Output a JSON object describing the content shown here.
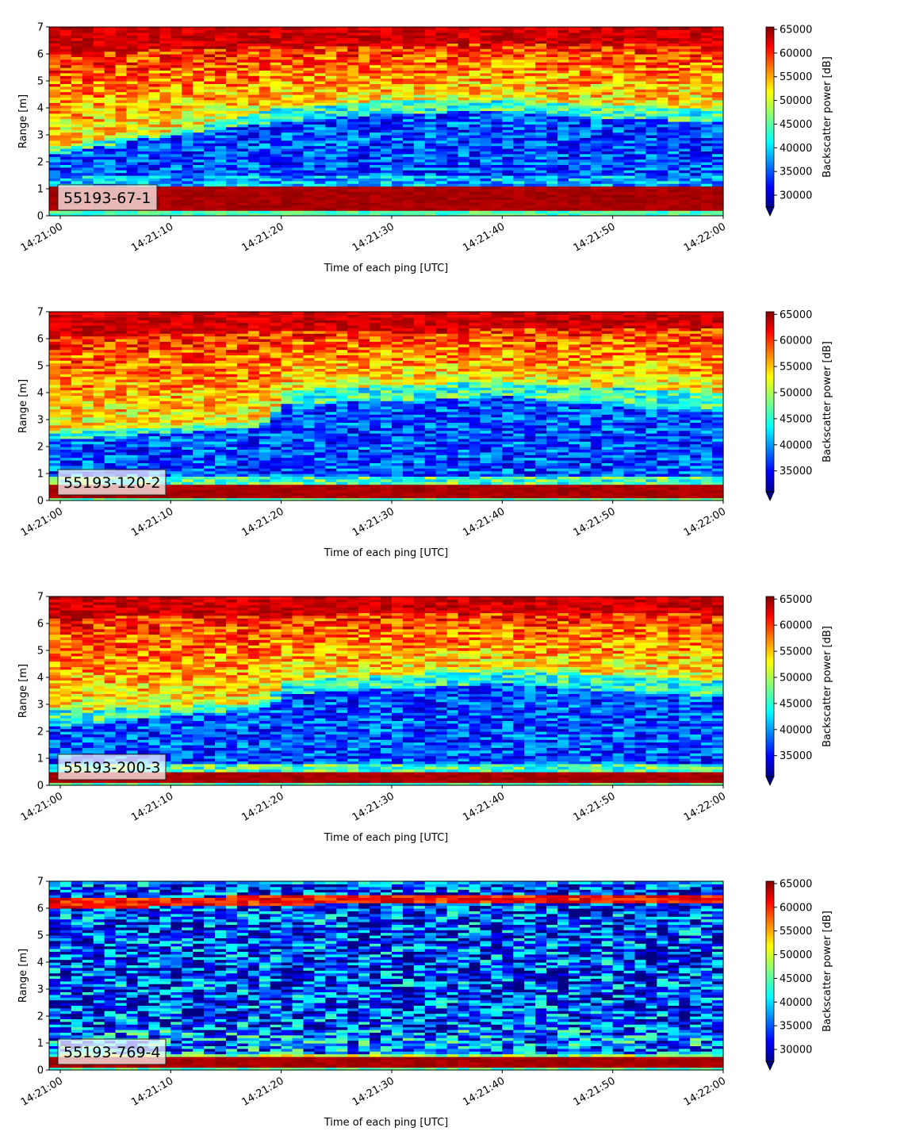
{
  "chart_data": [
    {
      "type": "heatmap",
      "label": "55193-67-1",
      "xlabel": "Time of each ping [UTC]",
      "ylabel": "Range [m]",
      "xticks": [
        "14:21:00",
        "14:21:10",
        "14:21:20",
        "14:21:30",
        "14:21:40",
        "14:21:50",
        "14:22:00"
      ],
      "x_range": [
        "14:20:59",
        "14:22:00"
      ],
      "ylim": [
        0,
        7
      ],
      "yticks": [
        0,
        1,
        2,
        3,
        4,
        5,
        6,
        7
      ],
      "colorbar": {
        "label": "Backscatter power [dB]",
        "ticks": [
          30000,
          35000,
          40000,
          45000,
          50000,
          55000,
          60000,
          65000
        ],
        "range": [
          27500,
          65500
        ],
        "extend": "min",
        "colormap": "jet"
      },
      "profile": [
        {
          "x": "14:21:00",
          "bottom_band": [
            0.2,
            1.15
          ],
          "low_upper": 2.3,
          "mid_upper": 2.6,
          "top_band_start": 6.0
        },
        {
          "x": "14:21:08",
          "bottom_band": [
            0.2,
            1.15
          ],
          "low_upper": 2.9,
          "mid_upper": 3.0,
          "top_band_start": 6.2
        },
        {
          "x": "14:21:20",
          "bottom_band": [
            0.2,
            1.15
          ],
          "low_upper": 3.5,
          "mid_upper": 4.0,
          "top_band_start": 6.3
        },
        {
          "x": "14:21:30",
          "bottom_band": [
            0.2,
            1.15
          ],
          "low_upper": 3.8,
          "mid_upper": 4.3,
          "top_band_start": 6.3
        },
        {
          "x": "14:21:40",
          "bottom_band": [
            0.2,
            1.15
          ],
          "low_upper": 3.9,
          "mid_upper": 4.3,
          "top_band_start": 6.4
        },
        {
          "x": "14:21:50",
          "bottom_band": [
            0.2,
            1.15
          ],
          "low_upper": 3.6,
          "mid_upper": 4.1,
          "top_band_start": 6.4
        },
        {
          "x": "14:22:00",
          "bottom_band": [
            0.2,
            1.15
          ],
          "low_upper": 3.5,
          "mid_upper": 4.0,
          "top_band_start": 6.4
        }
      ]
    },
    {
      "type": "heatmap",
      "label": "55193-120-2",
      "xlabel": "Time of each ping [UTC]",
      "ylabel": "Range [m]",
      "xticks": [
        "14:21:00",
        "14:21:10",
        "14:21:20",
        "14:21:30",
        "14:21:40",
        "14:21:50",
        "14:22:00"
      ],
      "x_range": [
        "14:20:59",
        "14:22:00"
      ],
      "ylim": [
        0,
        7
      ],
      "yticks": [
        0,
        1,
        2,
        3,
        4,
        5,
        6,
        7
      ],
      "colorbar": {
        "label": "Backscatter power [dB]",
        "ticks": [
          35000,
          40000,
          45000,
          50000,
          55000,
          60000,
          65000
        ],
        "range": [
          31000,
          65500
        ],
        "extend": "min",
        "colormap": "jet"
      },
      "profile": [
        {
          "x": "14:21:00",
          "bottom_band": [
            0.1,
            0.6
          ],
          "low_upper": 2.3,
          "mid_upper": 2.6,
          "top_band_start": 6.1
        },
        {
          "x": "14:21:10",
          "bottom_band": [
            0.1,
            0.6
          ],
          "low_upper": 2.5,
          "mid_upper": 2.7,
          "top_band_start": 6.2
        },
        {
          "x": "14:21:19",
          "bottom_band": [
            0.1,
            0.6
          ],
          "low_upper": 2.8,
          "mid_upper": 3.0,
          "top_band_start": 6.3
        },
        {
          "x": "14:21:20",
          "bottom_band": [
            0.1,
            0.6
          ],
          "low_upper": 3.6,
          "mid_upper": 4.1,
          "top_band_start": 6.3
        },
        {
          "x": "14:21:30",
          "bottom_band": [
            0.1,
            0.6
          ],
          "low_upper": 3.7,
          "mid_upper": 4.3,
          "top_band_start": 6.3
        },
        {
          "x": "14:21:40",
          "bottom_band": [
            0.1,
            0.6
          ],
          "low_upper": 3.9,
          "mid_upper": 4.4,
          "top_band_start": 6.4
        },
        {
          "x": "14:21:50",
          "bottom_band": [
            0.1,
            0.6
          ],
          "low_upper": 3.5,
          "mid_upper": 4.2,
          "top_band_start": 6.4
        },
        {
          "x": "14:22:00",
          "bottom_band": [
            0.1,
            0.6
          ],
          "low_upper": 3.3,
          "mid_upper": 4.0,
          "top_band_start": 6.4
        }
      ]
    },
    {
      "type": "heatmap",
      "label": "55193-200-3",
      "xlabel": "Time of each ping [UTC]",
      "ylabel": "Range [m]",
      "xticks": [
        "14:21:00",
        "14:21:10",
        "14:21:20",
        "14:21:30",
        "14:21:40",
        "14:21:50",
        "14:22:00"
      ],
      "x_range": [
        "14:20:59",
        "14:22:00"
      ],
      "ylim": [
        0,
        7
      ],
      "yticks": [
        0,
        1,
        2,
        3,
        4,
        5,
        6,
        7
      ],
      "colorbar": {
        "label": "Backscatter power [dB]",
        "ticks": [
          35000,
          40000,
          45000,
          50000,
          55000,
          60000,
          65000
        ],
        "range": [
          31000,
          65500
        ],
        "extend": "min",
        "colormap": "jet"
      },
      "profile": [
        {
          "x": "14:21:00",
          "bottom_band": [
            0.1,
            0.45
          ],
          "low_upper": 2.2,
          "mid_upper": 2.8,
          "top_band_start": 6.2
        },
        {
          "x": "14:21:10",
          "bottom_band": [
            0.1,
            0.45
          ],
          "low_upper": 2.6,
          "mid_upper": 2.9,
          "top_band_start": 6.3
        },
        {
          "x": "14:21:19",
          "bottom_band": [
            0.1,
            0.45
          ],
          "low_upper": 2.9,
          "mid_upper": 3.1,
          "top_band_start": 6.3
        },
        {
          "x": "14:21:20",
          "bottom_band": [
            0.1,
            0.45
          ],
          "low_upper": 3.4,
          "mid_upper": 3.9,
          "top_band_start": 6.3
        },
        {
          "x": "14:21:30",
          "bottom_band": [
            0.1,
            0.45
          ],
          "low_upper": 3.6,
          "mid_upper": 4.1,
          "top_band_start": 6.4
        },
        {
          "x": "14:21:40",
          "bottom_band": [
            0.1,
            0.45
          ],
          "low_upper": 3.8,
          "mid_upper": 4.3,
          "top_band_start": 6.4
        },
        {
          "x": "14:21:50",
          "bottom_band": [
            0.1,
            0.45
          ],
          "low_upper": 3.5,
          "mid_upper": 4.1,
          "top_band_start": 6.4
        },
        {
          "x": "14:22:00",
          "bottom_band": [
            0.1,
            0.45
          ],
          "low_upper": 3.3,
          "mid_upper": 3.9,
          "top_band_start": 6.4
        }
      ]
    },
    {
      "type": "heatmap",
      "label": "55193-769-4",
      "xlabel": "Time of each ping [UTC]",
      "ylabel": "Range [m]",
      "xticks": [
        "14:21:00",
        "14:21:10",
        "14:21:20",
        "14:21:30",
        "14:21:40",
        "14:21:50",
        "14:22:00"
      ],
      "x_range": [
        "14:20:59",
        "14:22:00"
      ],
      "ylim": [
        0,
        7
      ],
      "yticks": [
        0,
        1,
        2,
        3,
        4,
        5,
        6,
        7
      ],
      "colorbar": {
        "label": "Backscatter power [dB]",
        "ticks": [
          30000,
          35000,
          40000,
          45000,
          50000,
          55000,
          60000,
          65000
        ],
        "range": [
          27500,
          65500
        ],
        "extend": "min",
        "colormap": "jet"
      },
      "profile": [
        {
          "x": "14:21:00",
          "bottom_band": [
            0.15,
            0.45
          ],
          "thin_band": [
            6.0,
            6.4
          ],
          "top_band_start": 6.9
        },
        {
          "x": "14:21:30",
          "bottom_band": [
            0.15,
            0.45
          ],
          "thin_band": [
            6.2,
            6.5
          ],
          "top_band_start": 6.9
        },
        {
          "x": "14:22:00",
          "bottom_band": [
            0.15,
            0.45
          ],
          "thin_band": [
            6.2,
            6.5
          ],
          "top_band_start": 6.9
        }
      ]
    }
  ]
}
